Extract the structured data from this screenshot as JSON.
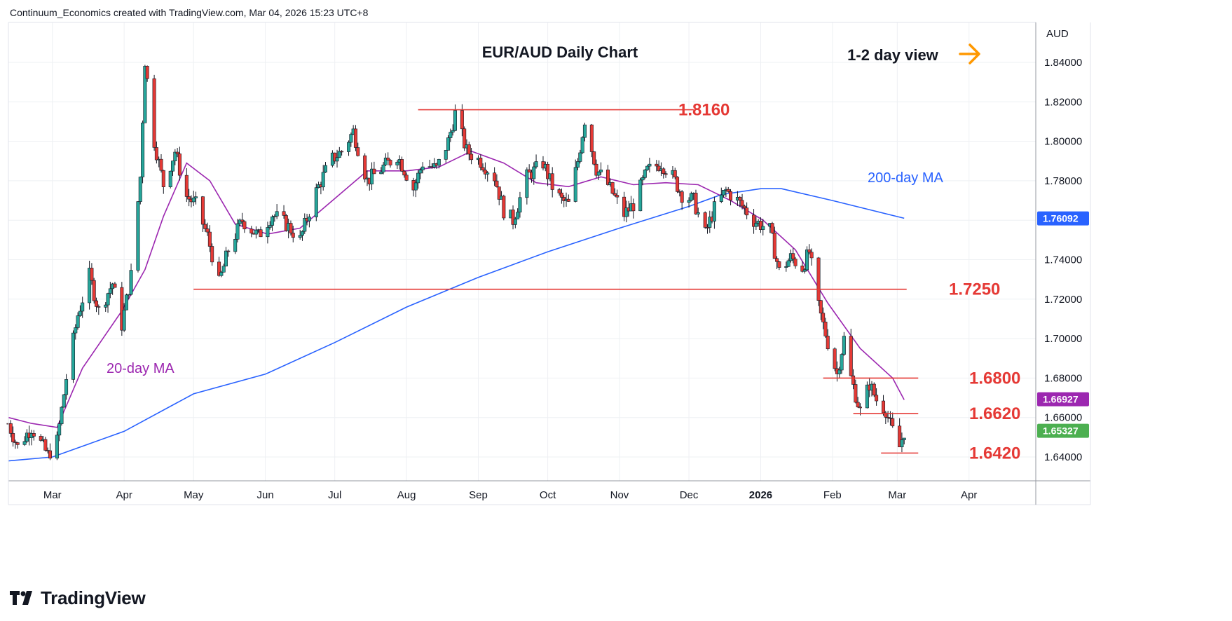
{
  "header": {
    "attribution": "Continuum_Economics created with TradingView.com, Mar 04, 2026 15:23 UTC+8"
  },
  "brand": {
    "name": "TradingView"
  },
  "colors": {
    "up": "#26a69a",
    "down": "#e53935",
    "ma20": "#9c27b0",
    "ma200": "#2962ff",
    "levels": "#e53935",
    "arrow": "#ff9800",
    "grid": "#eef0f3"
  },
  "chart_data": {
    "type": "candlestick",
    "title": "EUR/AUD Daily Chart",
    "subtitle": "1-2 day view",
    "currency": "AUD",
    "x_tick_labels": [
      "Mar",
      "Apr",
      "May",
      "Jun",
      "Jul",
      "Aug",
      "Sep",
      "Oct",
      "Nov",
      "Dec",
      "2026",
      "Feb",
      "Mar",
      "Apr"
    ],
    "y_tick_labels": [
      "1.84000",
      "1.82000",
      "1.80000",
      "1.78000",
      "1.76000",
      "1.74000",
      "1.72000",
      "1.70000",
      "1.68000",
      "1.66000",
      "1.64000"
    ],
    "ylim": [
      1.628,
      1.858
    ],
    "grid": true,
    "price_tags": [
      {
        "label": "1.76092",
        "value": 1.76092,
        "color": "#2962ff"
      },
      {
        "label": "1.66927",
        "value": 1.66927,
        "color": "#9c27b0"
      },
      {
        "label": "1.65327",
        "value": 1.65327,
        "color": "#4caf50"
      }
    ],
    "levels": [
      {
        "label": "1.8160",
        "value": 1.816
      },
      {
        "label": "1.7250",
        "value": 1.725
      },
      {
        "label": "1.6800",
        "value": 1.68
      },
      {
        "label": "1.6620",
        "value": 1.662
      },
      {
        "label": "1.6420",
        "value": 1.642
      }
    ],
    "annotations": [
      {
        "text": "20-day MA",
        "color": "#9c27b0"
      },
      {
        "text": "200-day MA",
        "color": "#2962ff"
      }
    ],
    "price_path": [
      [
        "2025-02-10",
        1.657
      ],
      [
        "2025-02-14",
        1.645
      ],
      [
        "2025-02-20",
        1.655
      ],
      [
        "2025-02-27",
        1.641
      ],
      [
        "2025-03-03",
        1.648
      ],
      [
        "2025-03-07",
        1.68
      ],
      [
        "2025-03-12",
        1.712
      ],
      [
        "2025-03-17",
        1.732
      ],
      [
        "2025-03-21",
        1.714
      ],
      [
        "2025-03-27",
        1.728
      ],
      [
        "2025-03-31",
        1.707
      ],
      [
        "2025-04-04",
        1.732
      ],
      [
        "2025-04-08",
        1.782
      ],
      [
        "2025-04-10",
        1.841
      ],
      [
        "2025-04-14",
        1.8
      ],
      [
        "2025-04-18",
        1.778
      ],
      [
        "2025-04-23",
        1.795
      ],
      [
        "2025-04-28",
        1.772
      ],
      [
        "2025-05-02",
        1.768
      ],
      [
        "2025-05-07",
        1.752
      ],
      [
        "2025-05-12",
        1.728
      ],
      [
        "2025-05-16",
        1.745
      ],
      [
        "2025-05-22",
        1.76
      ],
      [
        "2025-05-29",
        1.752
      ],
      [
        "2025-06-04",
        1.763
      ],
      [
        "2025-06-10",
        1.758
      ],
      [
        "2025-06-16",
        1.75
      ],
      [
        "2025-06-22",
        1.772
      ],
      [
        "2025-06-29",
        1.79
      ],
      [
        "2025-07-04",
        1.795
      ],
      [
        "2025-07-09",
        1.805
      ],
      [
        "2025-07-15",
        1.78
      ],
      [
        "2025-07-21",
        1.786
      ],
      [
        "2025-07-28",
        1.793
      ],
      [
        "2025-08-04",
        1.776
      ],
      [
        "2025-08-08",
        1.789
      ],
      [
        "2025-08-14",
        1.786
      ],
      [
        "2025-08-19",
        1.8
      ],
      [
        "2025-08-22",
        1.814
      ],
      [
        "2025-08-27",
        1.795
      ],
      [
        "2025-09-02",
        1.79
      ],
      [
        "2025-09-08",
        1.782
      ],
      [
        "2025-09-12",
        1.765
      ],
      [
        "2025-09-16",
        1.76
      ],
      [
        "2025-09-22",
        1.782
      ],
      [
        "2025-09-29",
        1.789
      ],
      [
        "2025-10-03",
        1.777
      ],
      [
        "2025-10-07",
        1.77
      ],
      [
        "2025-10-10",
        1.768
      ],
      [
        "2025-10-14",
        1.79
      ],
      [
        "2025-10-17",
        1.811
      ],
      [
        "2025-10-22",
        1.786
      ],
      [
        "2025-10-27",
        1.778
      ],
      [
        "2025-11-03",
        1.763
      ],
      [
        "2025-11-07",
        1.768
      ],
      [
        "2025-11-13",
        1.785
      ],
      [
        "2025-11-19",
        1.789
      ],
      [
        "2025-11-24",
        1.782
      ],
      [
        "2025-11-28",
        1.773
      ],
      [
        "2025-12-03",
        1.77
      ],
      [
        "2025-12-08",
        1.753
      ],
      [
        "2025-12-12",
        1.766
      ],
      [
        "2025-12-17",
        1.775
      ],
      [
        "2025-12-22",
        1.77
      ],
      [
        "2025-12-29",
        1.76
      ],
      [
        "2026-01-05",
        1.755
      ],
      [
        "2026-01-09",
        1.734
      ],
      [
        "2026-01-14",
        1.741
      ],
      [
        "2026-01-19",
        1.736
      ],
      [
        "2026-01-22",
        1.744
      ],
      [
        "2026-01-26",
        1.716
      ],
      [
        "2026-01-30",
        1.698
      ],
      [
        "2026-02-03",
        1.682
      ],
      [
        "2026-02-06",
        1.7
      ],
      [
        "2026-02-09",
        1.68
      ],
      [
        "2026-02-13",
        1.663
      ],
      [
        "2026-02-17",
        1.677
      ],
      [
        "2026-02-20",
        1.669
      ],
      [
        "2026-02-24",
        1.664
      ],
      [
        "2026-02-26",
        1.656
      ],
      [
        "2026-03-02",
        1.645
      ],
      [
        "2026-03-04",
        1.653
      ]
    ],
    "ma20_path": [
      [
        "2025-02-10",
        1.66
      ],
      [
        "2025-02-20",
        1.657
      ],
      [
        "2025-03-03",
        1.655
      ],
      [
        "2025-03-14",
        1.685
      ],
      [
        "2025-03-31",
        1.714
      ],
      [
        "2025-04-10",
        1.735
      ],
      [
        "2025-04-18",
        1.762
      ],
      [
        "2025-04-28",
        1.789
      ],
      [
        "2025-05-08",
        1.78
      ],
      [
        "2025-05-19",
        1.758
      ],
      [
        "2025-06-02",
        1.753
      ],
      [
        "2025-06-16",
        1.756
      ],
      [
        "2025-06-30",
        1.77
      ],
      [
        "2025-07-15",
        1.785
      ],
      [
        "2025-08-01",
        1.785
      ],
      [
        "2025-08-15",
        1.787
      ],
      [
        "2025-08-29",
        1.795
      ],
      [
        "2025-09-12",
        1.789
      ],
      [
        "2025-09-26",
        1.779
      ],
      [
        "2025-10-10",
        1.777
      ],
      [
        "2025-10-24",
        1.782
      ],
      [
        "2025-11-07",
        1.778
      ],
      [
        "2025-11-21",
        1.779
      ],
      [
        "2025-12-05",
        1.778
      ],
      [
        "2025-12-19",
        1.77
      ],
      [
        "2026-01-02",
        1.76
      ],
      [
        "2026-01-16",
        1.745
      ],
      [
        "2026-01-30",
        1.718
      ],
      [
        "2026-02-13",
        1.695
      ],
      [
        "2026-02-27",
        1.68
      ],
      [
        "2026-03-04",
        1.669
      ]
    ],
    "ma200_path": [
      [
        "2025-02-10",
        1.638
      ],
      [
        "2025-03-01",
        1.64
      ],
      [
        "2025-04-01",
        1.653
      ],
      [
        "2025-05-01",
        1.672
      ],
      [
        "2025-06-01",
        1.682
      ],
      [
        "2025-07-01",
        1.698
      ],
      [
        "2025-08-01",
        1.716
      ],
      [
        "2025-09-01",
        1.731
      ],
      [
        "2025-10-01",
        1.744
      ],
      [
        "2025-11-01",
        1.756
      ],
      [
        "2025-12-01",
        1.767
      ],
      [
        "2025-12-15",
        1.773
      ],
      [
        "2026-01-01",
        1.776
      ],
      [
        "2026-01-10",
        1.776
      ],
      [
        "2026-02-01",
        1.77
      ],
      [
        "2026-03-04",
        1.761
      ]
    ]
  }
}
